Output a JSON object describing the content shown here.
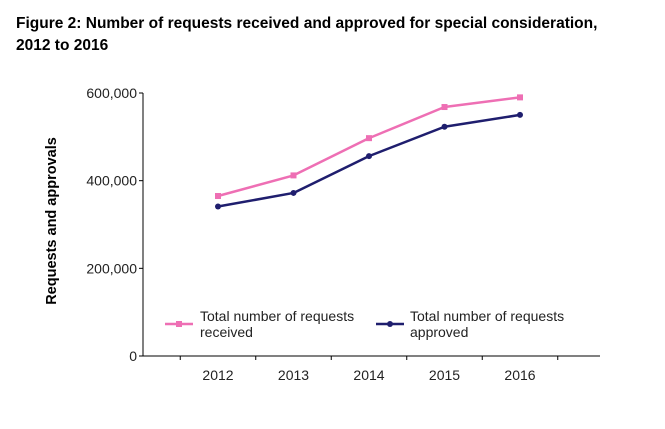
{
  "figure": {
    "title_line1": "Figure 2: Number of requests received and approved for special consideration,",
    "title_line2": "2012 to 2016"
  },
  "chart_data": {
    "type": "line",
    "title": "Figure 2: Number of requests received and approved for special consideration, 2012 to 2016",
    "xlabel": "",
    "ylabel": "Requests and approvals",
    "categories": [
      "2012",
      "2013",
      "2014",
      "2015",
      "2016"
    ],
    "ylim": [
      0,
      600000
    ],
    "yticks": [
      0,
      200000,
      400000,
      600000
    ],
    "ytick_labels": [
      "0",
      "200,000",
      "400,000",
      "600,000"
    ],
    "grid": false,
    "legend_position": "bottom-inside",
    "series": [
      {
        "name": "Total number of requests received",
        "legend_lines": [
          "Total number of requests",
          "received"
        ],
        "color": "#ee6fb4",
        "marker": "square",
        "values": [
          365000,
          412000,
          497000,
          568000,
          590000
        ]
      },
      {
        "name": "Total number of requests approved",
        "legend_lines": [
          "Total number of requests",
          "approved"
        ],
        "color": "#1f1e6e",
        "marker": "circle",
        "values": [
          341000,
          372000,
          456000,
          523000,
          550000
        ]
      }
    ]
  }
}
